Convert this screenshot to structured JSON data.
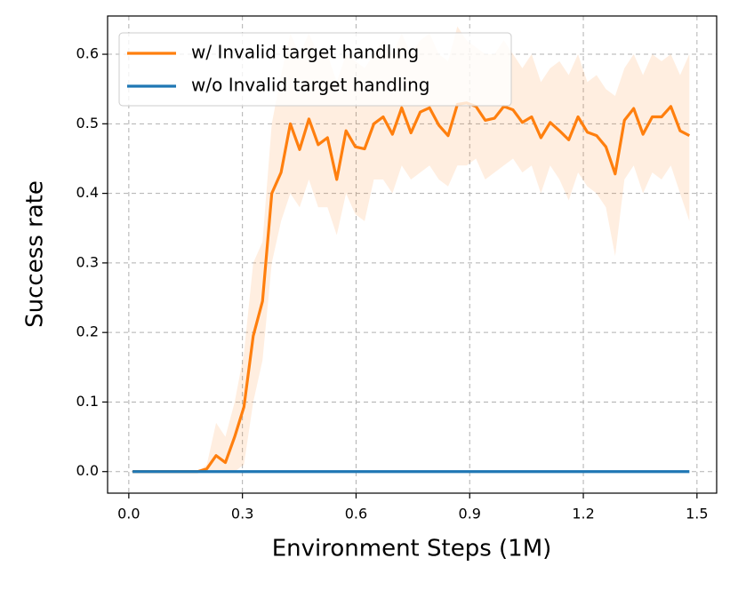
{
  "chart_data": {
    "type": "line",
    "xlabel": "Environment Steps (1M)",
    "ylabel": "Success rate",
    "xlim": [
      -0.056,
      1.552
    ],
    "ylim": [
      -0.031,
      0.655
    ],
    "xticks": [
      {
        "value": 0,
        "label": "0.0"
      },
      0.3,
      0.6,
      0.9,
      1.2,
      1.5
    ],
    "yticks": [
      {
        "value": 0,
        "label": "0.0"
      },
      0.1,
      0.2,
      0.3,
      0.4,
      0.5,
      0.6
    ],
    "grid": true,
    "legend": "upper left",
    "x": [
      0.01,
      0.0345,
      0.059,
      0.0835,
      0.108,
      0.1325,
      0.157,
      0.1815,
      0.206,
      0.2305,
      0.255,
      0.2795,
      0.304,
      0.3285,
      0.353,
      0.3775,
      0.402,
      0.4265,
      0.451,
      0.4755,
      0.5,
      0.5245,
      0.549,
      0.5735,
      0.598,
      0.6225,
      0.647,
      0.6715,
      0.696,
      0.7205,
      0.745,
      0.7695,
      0.794,
      0.8185,
      0.843,
      0.8675,
      0.892,
      0.9165,
      0.941,
      0.9655,
      0.99,
      1.0145,
      1.039,
      1.0635,
      1.088,
      1.1125,
      1.137,
      1.1615,
      1.186,
      1.2105,
      1.235,
      1.2595,
      1.284,
      1.3085,
      1.333,
      1.3575,
      1.382,
      1.4065,
      1.431,
      1.4555,
      1.48
    ],
    "series": [
      {
        "name": "w/ Invalid target handlıng",
        "color": "#ff7f0e",
        "values": [
          0,
          0,
          0,
          0,
          0,
          0,
          0,
          0,
          0.004,
          0.023,
          0.013,
          0.05,
          0.093,
          0.195,
          0.245,
          0.4,
          0.43,
          0.5,
          0.463,
          0.507,
          0.47,
          0.48,
          0.42,
          0.49,
          0.467,
          0.464,
          0.5,
          0.51,
          0.485,
          0.523,
          0.487,
          0.517,
          0.523,
          0.498,
          0.483,
          0.528,
          0.53,
          0.525,
          0.505,
          0.508,
          0.525,
          0.52,
          0.502,
          0.51,
          0.48,
          0.502,
          0.49,
          0.477,
          0.51,
          0.488,
          0.483,
          0.467,
          0.428,
          0.505,
          0.522,
          0.485,
          0.51,
          0.51,
          0.525,
          0.49,
          0.483
        ],
        "band_upper": [
          0,
          0,
          0,
          0,
          0,
          0,
          0,
          0,
          0.01,
          0.07,
          0.05,
          0.1,
          0.17,
          0.3,
          0.33,
          0.5,
          0.57,
          0.63,
          0.6,
          0.63,
          0.6,
          0.6,
          0.56,
          0.6,
          0.59,
          0.58,
          0.6,
          0.62,
          0.6,
          0.63,
          0.6,
          0.62,
          0.63,
          0.6,
          0.59,
          0.64,
          0.62,
          0.61,
          0.6,
          0.6,
          0.62,
          0.6,
          0.58,
          0.6,
          0.56,
          0.58,
          0.59,
          0.57,
          0.6,
          0.56,
          0.57,
          0.55,
          0.54,
          0.58,
          0.6,
          0.57,
          0.6,
          0.59,
          0.6,
          0.57,
          0.6
        ],
        "band_lower": [
          0,
          0,
          0,
          0,
          0,
          0,
          0,
          0,
          0,
          0,
          0,
          0,
          0.01,
          0.1,
          0.16,
          0.3,
          0.36,
          0.4,
          0.38,
          0.42,
          0.38,
          0.38,
          0.34,
          0.4,
          0.37,
          0.36,
          0.42,
          0.42,
          0.4,
          0.44,
          0.42,
          0.43,
          0.44,
          0.42,
          0.41,
          0.44,
          0.44,
          0.45,
          0.42,
          0.43,
          0.44,
          0.45,
          0.43,
          0.44,
          0.4,
          0.44,
          0.42,
          0.39,
          0.43,
          0.41,
          0.4,
          0.38,
          0.31,
          0.42,
          0.44,
          0.4,
          0.43,
          0.42,
          0.44,
          0.4,
          0.36
        ]
      },
      {
        "name": "w/o Invalid target handling",
        "color": "#1f77b4",
        "values": [
          0,
          0,
          0,
          0,
          0,
          0,
          0,
          0,
          0,
          0,
          0,
          0,
          0,
          0,
          0,
          0,
          0,
          0,
          0,
          0,
          0,
          0,
          0,
          0,
          0,
          0,
          0,
          0,
          0,
          0,
          0,
          0,
          0,
          0,
          0,
          0,
          0,
          0,
          0,
          0,
          0,
          0,
          0,
          0,
          0,
          0,
          0,
          0,
          0,
          0,
          0,
          0,
          0,
          0,
          0,
          0,
          0,
          0,
          0,
          0,
          0
        ]
      }
    ]
  }
}
